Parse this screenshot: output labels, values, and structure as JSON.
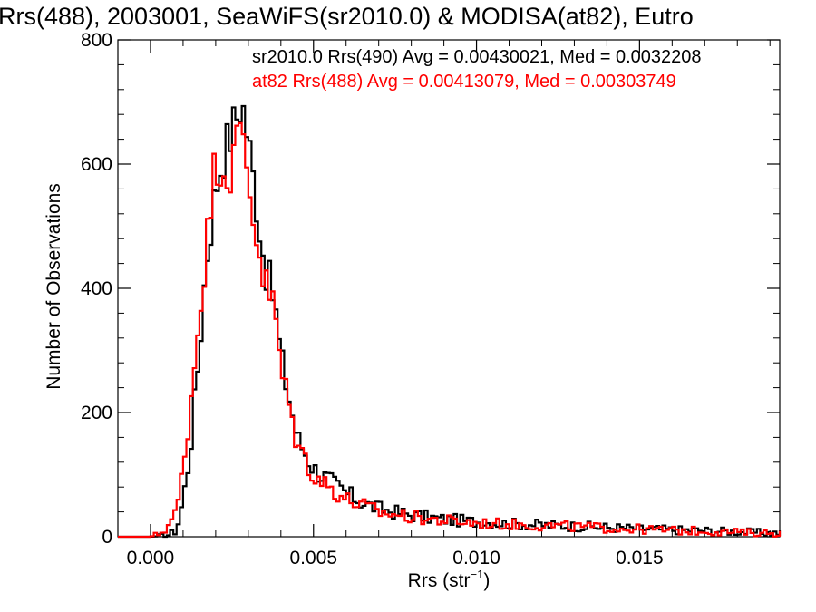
{
  "chart_data": {
    "type": "line",
    "title": "Rrs(488), 2003001, SeaWiFS(sr2010.0) & MODISA(at82), Eutro",
    "xlabel": "Rrs (str",
    "xlabel_sup": "−1",
    "xlabel_close": ")",
    "ylabel": "Number of Observations",
    "xlim": [
      -0.001,
      0.0193
    ],
    "ylim": [
      0,
      800
    ],
    "x_ticks": [
      0.0,
      0.005,
      0.01,
      0.015
    ],
    "x_tick_labels": [
      "0.000",
      "0.005",
      "0.010",
      "0.015"
    ],
    "y_ticks": [
      0,
      200,
      400,
      600,
      800
    ],
    "y_tick_labels": [
      "0",
      "200",
      "400",
      "600",
      "800"
    ],
    "grid": false,
    "legend_position": "top-right",
    "series": [
      {
        "name": "sr2010.0 Rrs(490)",
        "legend": "sr2010.0 Rrs(490) Avg = 0.00430021, Med = 0.0032208",
        "color": "#000000",
        "x": [
          -0.001,
          0.0,
          0.0005,
          0.0008,
          0.001,
          0.0012,
          0.0015,
          0.0017,
          0.002,
          0.0022,
          0.0024,
          0.0026,
          0.0028,
          0.003,
          0.0032,
          0.0035,
          0.0038,
          0.004,
          0.0043,
          0.0045,
          0.0048,
          0.005,
          0.0055,
          0.006,
          0.0065,
          0.007,
          0.008,
          0.009,
          0.01,
          0.011,
          0.012,
          0.013,
          0.014,
          0.015,
          0.016,
          0.017,
          0.018,
          0.019
        ],
        "y": [
          0,
          0,
          2,
          10,
          60,
          130,
          300,
          440,
          560,
          610,
          640,
          670,
          705,
          640,
          560,
          440,
          380,
          290,
          210,
          160,
          130,
          110,
          90,
          70,
          55,
          45,
          35,
          28,
          24,
          21,
          19,
          17,
          15,
          13,
          11,
          10,
          8,
          6
        ]
      },
      {
        "name": "at82 Rrs(488)",
        "legend": "at82 Rrs(488) Avg = 0.00413079, Med = 0.00303749",
        "color": "#ff0000",
        "x": [
          -0.001,
          0.0,
          0.0003,
          0.0005,
          0.0008,
          0.001,
          0.0012,
          0.0015,
          0.0018,
          0.002,
          0.0022,
          0.0024,
          0.0026,
          0.0028,
          0.003,
          0.0032,
          0.0035,
          0.0038,
          0.004,
          0.0043,
          0.0045,
          0.0048,
          0.005,
          0.0055,
          0.006,
          0.0065,
          0.007,
          0.008,
          0.009,
          0.01,
          0.011,
          0.012,
          0.013,
          0.014,
          0.015,
          0.016,
          0.017,
          0.018,
          0.019
        ],
        "y": [
          0,
          0,
          5,
          15,
          40,
          110,
          200,
          360,
          510,
          610,
          600,
          580,
          620,
          660,
          580,
          500,
          410,
          370,
          270,
          200,
          150,
          120,
          100,
          80,
          60,
          50,
          40,
          32,
          26,
          22,
          20,
          18,
          16,
          14,
          12,
          10,
          9,
          7,
          6
        ]
      }
    ]
  }
}
